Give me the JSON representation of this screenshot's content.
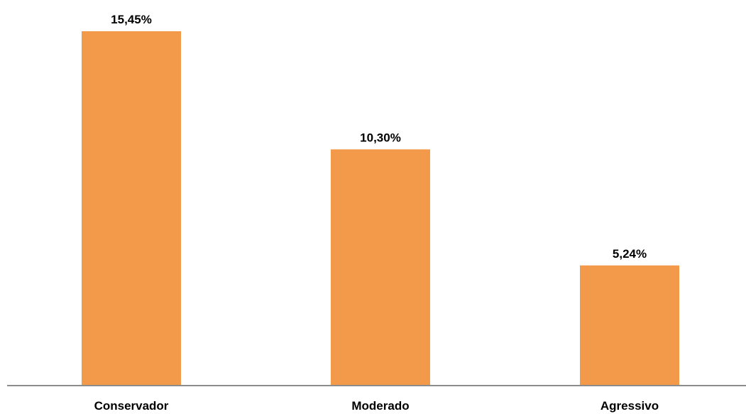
{
  "chart_data": {
    "type": "bar",
    "categories": [
      "Conservador",
      "Moderado",
      "Agressivo"
    ],
    "values": [
      15.45,
      10.3,
      5.24
    ],
    "value_labels": [
      "15,45%",
      "10,30%",
      "5,24%"
    ],
    "title": "",
    "xlabel": "",
    "ylabel": "",
    "ylim": [
      0,
      15.45
    ],
    "grid": false,
    "legend": "none",
    "bar_color": "#F39A4A",
    "axis_color": "#8C8C8C"
  }
}
